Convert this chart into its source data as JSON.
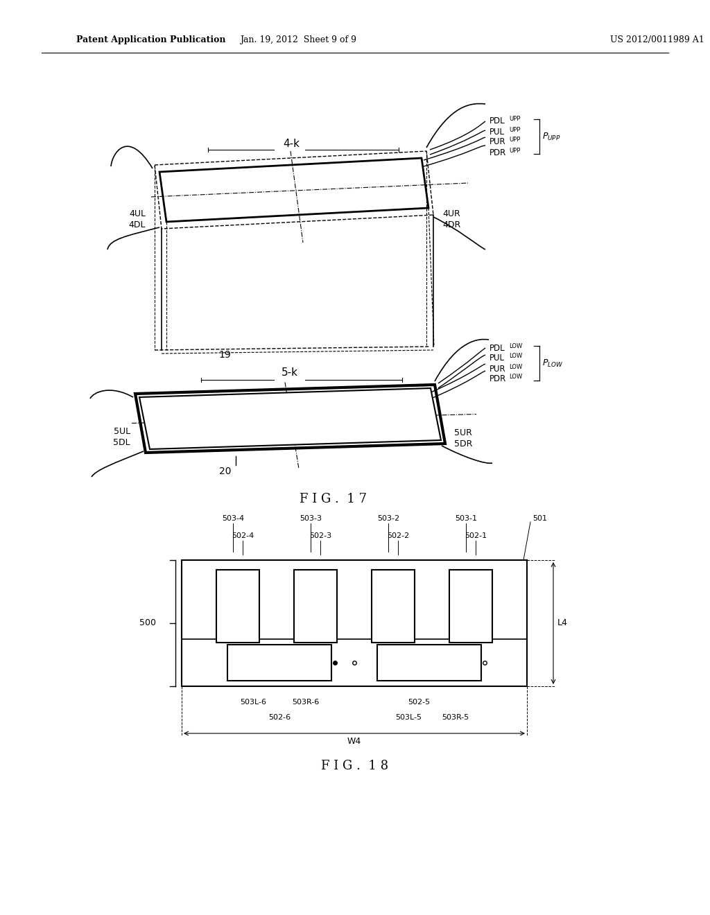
{
  "header_left": "Patent Application Publication",
  "header_mid": "Jan. 19, 2012  Sheet 9 of 9",
  "header_right": "US 2012/0011989 A1",
  "fig17_label": "F I G .  1 7",
  "fig18_label": "F I G .  1 8",
  "bg_color": "#ffffff",
  "lc": "#000000"
}
